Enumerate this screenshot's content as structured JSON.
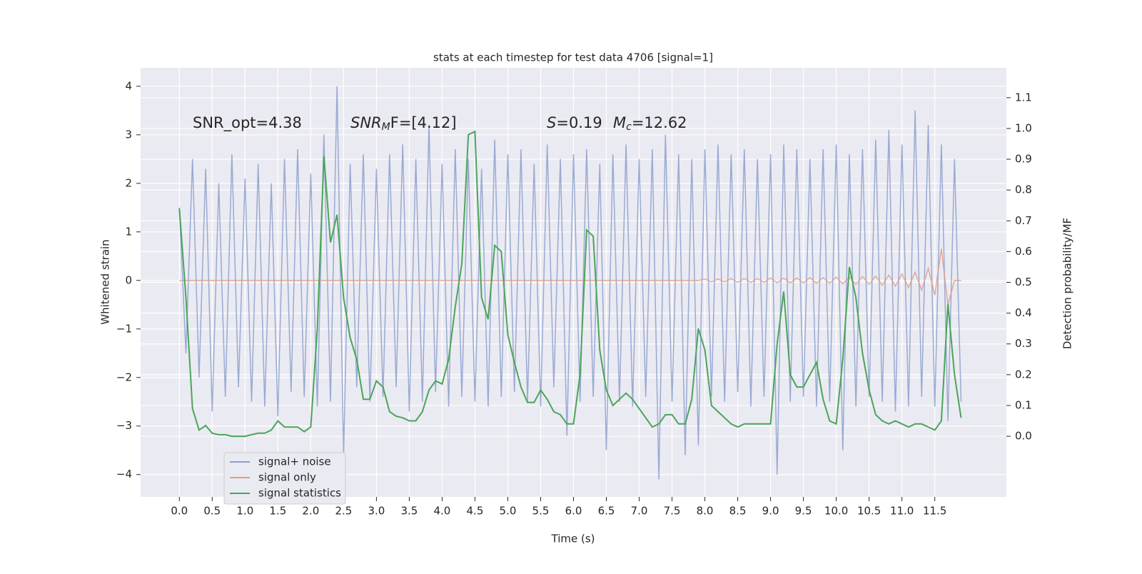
{
  "chart_data": {
    "type": "line",
    "title": "stats at each timestep for test data 4706 [signal=1]",
    "xlabel": "Time (s)",
    "ylabel": "Whitened strain",
    "y2label": "Detection probability/MF",
    "annotations": [
      {
        "parts": [
          "SNR_opt=4.38"
        ],
        "styles": [
          "normal"
        ]
      },
      {
        "parts": [
          "SNR",
          "M",
          "F=[4.12]"
        ],
        "styles": [
          "italic",
          "italic-sub",
          "normal"
        ]
      },
      {
        "parts": [
          "S",
          "=0.19"
        ],
        "styles": [
          "italic",
          "normal"
        ]
      },
      {
        "parts": [
          "M",
          "c",
          "=12.62"
        ],
        "styles": [
          "italic",
          "italic-sub",
          "normal"
        ]
      }
    ],
    "grid": true,
    "legend": "lower left",
    "xlim": [
      -0.59,
      12.59
    ],
    "ylim": [
      -4.46,
      4.38
    ],
    "y2lim": [
      -0.197,
      1.197
    ],
    "xticks": [
      {
        "value": 0,
        "label": "0.0"
      },
      {
        "value": 0.5,
        "label": "0.5"
      },
      {
        "value": 1,
        "label": "1.0"
      },
      {
        "value": 1.5,
        "label": "1.5"
      },
      {
        "value": 2,
        "label": "2.0"
      },
      {
        "value": 2.5,
        "label": "2.5"
      },
      {
        "value": 3,
        "label": "3.0"
      },
      {
        "value": 3.5,
        "label": "3.5"
      },
      {
        "value": 4,
        "label": "4.0"
      },
      {
        "value": 4.5,
        "label": "4.5"
      },
      {
        "value": 5,
        "label": "5.0"
      },
      {
        "value": 5.5,
        "label": "5.5"
      },
      {
        "value": 6,
        "label": "6.0"
      },
      {
        "value": 6.5,
        "label": "6.5"
      },
      {
        "value": 7,
        "label": "7.0"
      },
      {
        "value": 7.5,
        "label": "7.5"
      },
      {
        "value": 8,
        "label": "8.0"
      },
      {
        "value": 8.5,
        "label": "8.5"
      },
      {
        "value": 9,
        "label": "9.0"
      },
      {
        "value": 9.5,
        "label": "9.5"
      },
      {
        "value": 10,
        "label": "10.0"
      },
      {
        "value": 10.5,
        "label": "10.5"
      },
      {
        "value": 11,
        "label": "11.0"
      },
      {
        "value": 11.5,
        "label": "11.5"
      }
    ],
    "yticks": [
      {
        "value": -4,
        "label": "−4"
      },
      {
        "value": -3,
        "label": "−3"
      },
      {
        "value": -2,
        "label": "−2"
      },
      {
        "value": -1,
        "label": "−1"
      },
      0,
      1,
      2,
      3,
      4
    ],
    "y2ticks": [
      {
        "value": 0,
        "label": "0.0"
      },
      {
        "value": 0.1,
        "label": "0.1"
      },
      {
        "value": 0.2,
        "label": "0.2"
      },
      {
        "value": 0.3,
        "label": "0.3"
      },
      {
        "value": 0.4,
        "label": "0.4"
      },
      {
        "value": 0.5,
        "label": "0.5"
      },
      {
        "value": 0.6,
        "label": "0.6"
      },
      {
        "value": 0.7,
        "label": "0.7"
      },
      {
        "value": 0.8,
        "label": "0.8"
      },
      {
        "value": 0.9,
        "label": "0.9"
      },
      {
        "value": 1,
        "label": "1.0"
      },
      {
        "value": 1.1,
        "label": "1.1"
      }
    ],
    "x": [
      0,
      0.1,
      0.2,
      0.3,
      0.4,
      0.5,
      0.6,
      0.7,
      0.8,
      0.9,
      1,
      1.1,
      1.2,
      1.3,
      1.4,
      1.5,
      1.6,
      1.7,
      1.8,
      1.9,
      2,
      2.1,
      2.2,
      2.3,
      2.4,
      2.5,
      2.6,
      2.7,
      2.8,
      2.9,
      3,
      3.1,
      3.2,
      3.3,
      3.4,
      3.5,
      3.6,
      3.7,
      3.8,
      3.9,
      4,
      4.1,
      4.2,
      4.3,
      4.4,
      4.5,
      4.6,
      4.7,
      4.8,
      4.9,
      5,
      5.1,
      5.2,
      5.3,
      5.4,
      5.5,
      5.6,
      5.7,
      5.8,
      5.9,
      6,
      6.1,
      6.2,
      6.3,
      6.4,
      6.5,
      6.6,
      6.7,
      6.8,
      6.9,
      7,
      7.1,
      7.2,
      7.3,
      7.4,
      7.5,
      7.6,
      7.7,
      7.8,
      7.9,
      8,
      8.1,
      8.2,
      8.3,
      8.4,
      8.5,
      8.6,
      8.7,
      8.8,
      8.9,
      9,
      9.1,
      9.2,
      9.3,
      9.4,
      9.5,
      9.6,
      9.7,
      9.8,
      9.9,
      10,
      10.1,
      10.2,
      10.3,
      10.4,
      10.5,
      10.6,
      10.7,
      10.8,
      10.9,
      11,
      11.1,
      11.2,
      11.3,
      11.4,
      11.5,
      11.6,
      11.7,
      11.8,
      11.9
    ],
    "series": [
      {
        "name": "signal+ noise",
        "color": "#8c9fcc",
        "values": [
          1.5,
          -1.5,
          2.5,
          -2.0,
          2.3,
          -2.7,
          2.0,
          -2.4,
          2.6,
          -2.2,
          2.1,
          -2.5,
          2.4,
          -2.6,
          2.0,
          -2.8,
          2.5,
          -2.3,
          2.7,
          -2.4,
          2.2,
          -2.6,
          3.0,
          -2.5,
          4.0,
          -3.6,
          2.4,
          -2.2,
          2.6,
          -2.5,
          2.3,
          -2.4,
          2.6,
          -2.2,
          2.8,
          -2.7,
          2.5,
          -2.5,
          3.2,
          -2.3,
          2.4,
          -2.6,
          2.7,
          -2.4,
          2.5,
          -2.5,
          2.3,
          -2.6,
          2.9,
          -2.4,
          2.6,
          -2.3,
          2.7,
          -2.5,
          2.4,
          -2.6,
          2.8,
          -2.2,
          2.5,
          -3.2,
          2.6,
          -2.5,
          2.7,
          -2.4,
          2.4,
          -3.5,
          2.6,
          -2.5,
          2.8,
          -2.6,
          2.5,
          -2.4,
          2.7,
          -4.1,
          3.0,
          -2.5,
          2.6,
          -3.6,
          2.5,
          -3.4,
          2.7,
          -2.4,
          2.8,
          -2.5,
          2.6,
          -2.3,
          2.7,
          -2.6,
          2.5,
          -2.4,
          2.6,
          -4.0,
          2.8,
          -2.5,
          2.7,
          -2.4,
          2.5,
          -2.6,
          2.7,
          -2.5,
          2.8,
          -3.5,
          2.6,
          -2.6,
          2.7,
          -2.4,
          2.9,
          -2.5,
          3.1,
          -2.7,
          2.8,
          -2.6,
          3.5,
          -2.4,
          3.2,
          -2.6,
          2.8,
          -2.9,
          2.5,
          -2.5
        ]
      },
      {
        "name": "signal only",
        "color": "#dd9f88",
        "values": [
          0,
          0,
          0,
          0,
          0,
          0,
          0,
          0,
          0,
          0,
          0,
          0,
          0,
          0,
          0,
          0,
          0,
          0,
          0,
          0,
          0,
          0,
          0,
          0,
          0,
          0,
          0,
          0,
          0,
          0,
          0,
          0,
          0,
          0,
          0,
          0,
          0,
          0,
          0,
          0,
          0,
          0,
          0,
          0,
          0,
          0,
          0,
          0,
          0,
          0,
          0,
          0,
          0,
          0,
          0,
          0,
          0,
          0,
          0,
          0,
          0,
          0,
          0,
          0,
          0,
          0,
          0,
          0,
          0,
          0,
          0,
          0,
          0,
          0,
          0,
          0,
          0,
          0,
          0,
          0,
          0.03,
          -0.03,
          0.03,
          -0.03,
          0.04,
          -0.04,
          0.04,
          -0.04,
          0.04,
          -0.04,
          0.05,
          -0.05,
          0.05,
          -0.05,
          0.05,
          -0.05,
          0.06,
          -0.06,
          0.06,
          -0.06,
          0.07,
          -0.07,
          0.07,
          -0.08,
          0.08,
          -0.08,
          0.09,
          -0.1,
          0.11,
          -0.12,
          0.13,
          -0.15,
          0.17,
          -0.2,
          0.25,
          -0.3,
          0.65,
          -0.5,
          0,
          0
        ]
      },
      {
        "name": "signal statistics",
        "color": "#4aa55a",
        "axis": "y2",
        "values": [
          0.74,
          0.45,
          0.09,
          0.02,
          0.035,
          0.01,
          0.005,
          0.005,
          0,
          0,
          0,
          0.005,
          0.01,
          0.01,
          0.02,
          0.05,
          0.03,
          0.03,
          0.03,
          0.015,
          0.03,
          0.35,
          0.91,
          0.63,
          0.72,
          0.45,
          0.32,
          0.25,
          0.12,
          0.12,
          0.18,
          0.16,
          0.08,
          0.065,
          0.06,
          0.05,
          0.05,
          0.08,
          0.15,
          0.18,
          0.17,
          0.25,
          0.42,
          0.56,
          0.98,
          0.99,
          0.45,
          0.38,
          0.62,
          0.6,
          0.33,
          0.24,
          0.16,
          0.11,
          0.11,
          0.15,
          0.12,
          0.08,
          0.07,
          0.04,
          0.04,
          0.2,
          0.67,
          0.65,
          0.28,
          0.15,
          0.1,
          0.12,
          0.14,
          0.12,
          0.09,
          0.06,
          0.03,
          0.04,
          0.07,
          0.07,
          0.04,
          0.04,
          0.12,
          0.35,
          0.28,
          0.1,
          0.08,
          0.06,
          0.04,
          0.03,
          0.04,
          0.04,
          0.04,
          0.04,
          0.04,
          0.3,
          0.47,
          0.2,
          0.16,
          0.16,
          0.2,
          0.24,
          0.12,
          0.05,
          0.04,
          0.25,
          0.55,
          0.45,
          0.27,
          0.15,
          0.07,
          0.05,
          0.04,
          0.05,
          0.04,
          0.03,
          0.04,
          0.04,
          0.03,
          0.02,
          0.05,
          0.43,
          0.2,
          0.06
        ]
      }
    ]
  }
}
